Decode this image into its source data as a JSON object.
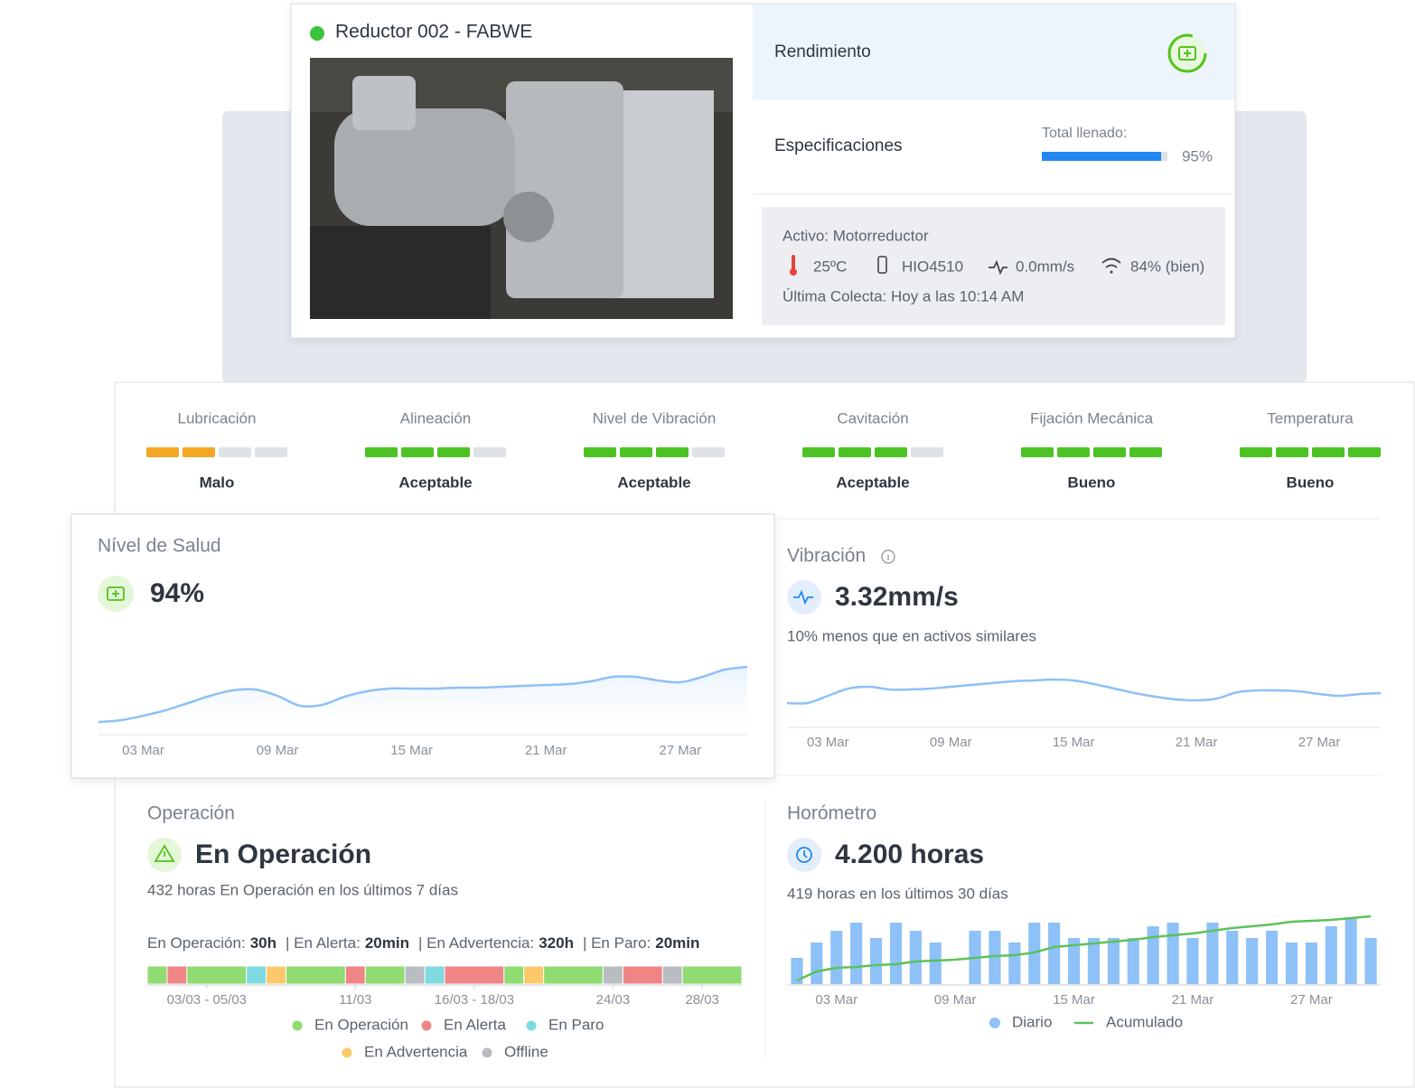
{
  "header": {
    "title": "Reductor 002 - FABWE",
    "status_color": "#3cc23c"
  },
  "rendimiento": {
    "label": "Rendimiento"
  },
  "specs": {
    "label": "Especificaciones",
    "fill_label": "Total llenado:",
    "fill_value": 95,
    "fill_value_label": "95%",
    "fill_color": "#2187f3"
  },
  "info": {
    "asset": "Activo: Motorreductor",
    "temperature": "25ºC",
    "sensor": "HIO4510",
    "vibration": "0.0mm/s",
    "signal": "84% (bien)",
    "last": "Última Colecta: Hoy a las 10:14 AM"
  },
  "indicators": {
    "max_level": 4,
    "items": [
      {
        "name": "Lubricación",
        "level": 2,
        "status": "Malo",
        "color": "#f5a623"
      },
      {
        "name": "Alineación",
        "level": 3,
        "status": "Aceptable",
        "color": "#4cc225"
      },
      {
        "name": "Nivel de Vibración",
        "level": 3,
        "status": "Aceptable",
        "color": "#4cc225"
      },
      {
        "name": "Cavitación",
        "level": 3,
        "status": "Aceptable",
        "color": "#4cc225"
      },
      {
        "name": "Fijación Mecánica",
        "level": 4,
        "status": "Bueno",
        "color": "#4cc225"
      },
      {
        "name": "Temperatura",
        "level": 4,
        "status": "Bueno",
        "color": "#4cc225"
      }
    ]
  },
  "chart_data": [
    {
      "type": "line",
      "title": "Nível de Salud",
      "value": 94,
      "value_label": "94%",
      "color": "#8ec1f7",
      "categories": [
        null,
        null,
        "03 Mar",
        null,
        null,
        null,
        null,
        null,
        "09 Mar",
        null,
        null,
        null,
        null,
        null,
        "15 Mar",
        null,
        null,
        null,
        null,
        null,
        "21 Mar",
        null,
        null,
        null,
        null,
        null,
        "27 Mar",
        null,
        null,
        null
      ],
      "values": [
        14,
        16,
        21,
        27,
        35,
        43,
        49,
        50,
        43,
        32,
        33,
        42,
        48,
        51,
        51,
        51,
        52,
        52,
        53,
        54,
        55,
        56,
        59,
        64,
        64,
        60,
        58,
        64,
        72,
        75
      ],
      "ylim": [
        0,
        100
      ]
    },
    {
      "type": "line",
      "title": "Vibración",
      "value": 3.32,
      "value_label": "3.32mm/s",
      "subtitle": "10% menos que en activos similares",
      "color": "#8ec1f7",
      "categories": [
        null,
        null,
        "03 Mar",
        null,
        null,
        null,
        null,
        null,
        "09 Mar",
        null,
        null,
        null,
        null,
        null,
        "15 Mar",
        null,
        null,
        null,
        null,
        null,
        "21 Mar",
        null,
        null,
        null,
        null,
        null,
        "27 Mar",
        null,
        null,
        null
      ],
      "values": [
        27,
        27,
        35,
        43,
        45,
        42,
        42,
        43,
        45,
        47,
        49,
        51,
        52,
        53,
        52,
        48,
        43,
        38,
        34,
        31,
        30,
        32,
        39,
        41,
        41,
        40,
        37,
        35,
        37,
        38
      ],
      "ylim": [
        0,
        100
      ]
    },
    {
      "type": "timeline",
      "title": "Operación",
      "status": "En Operación",
      "subtitle": "432 horas En Operación en los últimos 7 días",
      "summary": [
        {
          "label": "En Operación:",
          "value": "30h"
        },
        {
          "label": "| En Alerta:",
          "value": "20min"
        },
        {
          "label": "| En Advertencia:",
          "value": "320h"
        },
        {
          "label": "| En Paro:",
          "value": "20min"
        }
      ],
      "series": [
        {
          "name": "En Operación",
          "color": "#90db72"
        },
        {
          "name": "En Alerta",
          "color": "#f08585"
        },
        {
          "name": "En Paro",
          "color": "#7fdae2"
        },
        {
          "name": "En Advertencia",
          "color": "#fcc96a"
        },
        {
          "name": "Offline",
          "color": "#b9bcc0"
        }
      ],
      "segments": [
        {
          "status": 0,
          "days": 1
        },
        {
          "status": 1,
          "days": 1
        },
        {
          "status": 0,
          "days": 3
        },
        {
          "status": 2,
          "days": 1
        },
        {
          "status": 3,
          "days": 1
        },
        {
          "status": 0,
          "days": 3
        },
        {
          "status": 1,
          "days": 1
        },
        {
          "status": 0,
          "days": 2
        },
        {
          "status": 4,
          "days": 1
        },
        {
          "status": 2,
          "days": 1
        },
        {
          "status": 1,
          "days": 3
        },
        {
          "status": 0,
          "days": 1
        },
        {
          "status": 3,
          "days": 1
        },
        {
          "status": 0,
          "days": 3
        },
        {
          "status": 4,
          "days": 1
        },
        {
          "status": 1,
          "days": 2
        },
        {
          "status": 4,
          "days": 1
        },
        {
          "status": 0,
          "days": 3
        }
      ],
      "xlim": [
        0,
        30
      ],
      "xticks": [
        {
          "value": 3,
          "label": "03/03 - 05/03"
        },
        {
          "value": 10.5,
          "label": "11/03"
        },
        {
          "value": 16.5,
          "label": "16/03 - 18/03"
        },
        {
          "value": 23.5,
          "label": "24/03"
        },
        {
          "value": 28,
          "label": "28/03"
        }
      ]
    },
    {
      "type": "bar",
      "title": "Horómetro",
      "value_label": "4.200 horas",
      "subtitle": "419 horas en los últimos 30 días",
      "categories": [
        null,
        null,
        "03 Mar",
        null,
        null,
        null,
        null,
        null,
        "09 Mar",
        null,
        null,
        null,
        null,
        null,
        "15 Mar",
        null,
        null,
        null,
        null,
        null,
        "21 Mar",
        null,
        null,
        null,
        null,
        null,
        "27 Mar",
        null,
        null,
        null
      ],
      "series": [
        {
          "name": "Diario",
          "color": "#8ec1f7",
          "values": [
            29,
            46,
            59,
            68,
            51,
            68,
            59,
            46,
            0,
            59,
            59,
            46,
            68,
            68,
            51,
            51,
            51,
            51,
            64,
            68,
            51,
            68,
            59,
            51,
            59,
            46,
            46,
            64,
            72,
            51
          ]
        },
        {
          "name": "Acumulado",
          "color": "#5cc25a",
          "axis": "y2",
          "values": [
            4,
            14,
            18,
            19,
            21,
            22,
            25,
            26,
            27,
            29,
            31,
            32,
            35,
            41,
            43,
            45,
            47,
            49,
            52,
            54,
            56,
            59,
            62,
            64,
            66,
            69,
            70,
            71,
            73,
            75
          ]
        }
      ],
      "ylim": [
        0,
        80
      ],
      "y2lim": [
        0,
        80
      ]
    }
  ]
}
